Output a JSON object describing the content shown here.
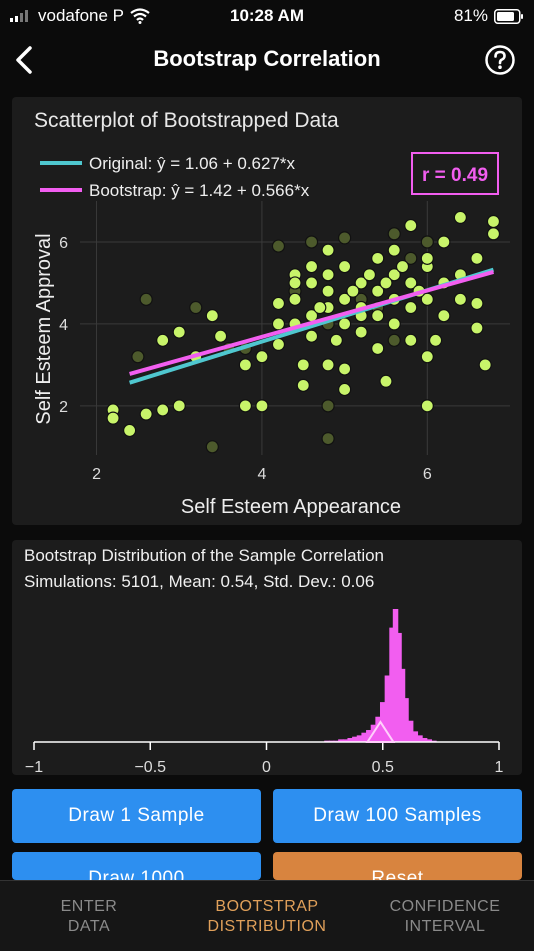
{
  "status_bar": {
    "carrier": "vodafone P",
    "time": "10:28 AM",
    "battery": "81%"
  },
  "navbar": {
    "title": "Bootstrap Correlation",
    "back_icon": "chevron-left-icon",
    "help_icon": "question-circle-icon"
  },
  "scatter_card": {
    "title": "Scatterplot of Bootstrapped Data",
    "legend": [
      {
        "label": "Original: ŷ = 1.06 + 0.627*x",
        "color": "#4fc7cf"
      },
      {
        "label": "Bootstrap: ŷ = 1.42 + 0.566*x",
        "color": "#f25ef0"
      }
    ],
    "r_badge": "r = 0.49"
  },
  "dist_card": {
    "title": "Bootstrap Distribution of the Sample Correlation",
    "subtitle": "Simulations: 5101, Mean: 0.54, Std. Dev.: 0.06"
  },
  "buttons": {
    "draw1": "Draw 1 Sample",
    "draw100": "Draw 100 Samples",
    "draw1000": "Draw 1000",
    "reset": "Reset"
  },
  "tabs": [
    {
      "line1": "ENTER",
      "line2": "DATA"
    },
    {
      "line1": "BOOTSTRAP",
      "line2": "DISTRIBUTION"
    },
    {
      "line1": "CONFIDENCE",
      "line2": "INTERVAL"
    }
  ],
  "chart_data": [
    {
      "type": "scatter",
      "xlabel": "Self Esteem Appearance",
      "ylabel": "Self Esteem Approval",
      "xlim": [
        1.8,
        7.0
      ],
      "ylim": [
        0.8,
        7.0
      ],
      "xticks": [
        2,
        4,
        6
      ],
      "yticks": [
        2,
        4,
        6
      ],
      "grid": true,
      "point_color": "#c8f46a",
      "faded_point_color": "#4d5a2c",
      "lines": [
        {
          "name": "Original",
          "intercept": 1.06,
          "slope": 0.627,
          "x_range": [
            2.4,
            6.8
          ],
          "color": "#4fc7cf"
        },
        {
          "name": "Bootstrap",
          "intercept": 1.42,
          "slope": 0.566,
          "x_range": [
            2.4,
            6.8
          ],
          "color": "#f25ef0"
        }
      ],
      "points": [
        [
          2.2,
          1.9
        ],
        [
          2.2,
          1.7
        ],
        [
          2.4,
          1.4
        ],
        [
          2.6,
          1.8
        ],
        [
          2.8,
          1.9
        ],
        [
          2.8,
          3.6
        ],
        [
          3.0,
          3.8
        ],
        [
          3.2,
          3.2
        ],
        [
          3.4,
          4.2
        ],
        [
          3.5,
          3.7
        ],
        [
          3.8,
          3.0
        ],
        [
          3.8,
          2.0
        ],
        [
          4.0,
          2.0
        ],
        [
          4.0,
          3.2
        ],
        [
          4.2,
          3.5
        ],
        [
          4.2,
          4.5
        ],
        [
          4.4,
          4.0
        ],
        [
          4.4,
          4.6
        ],
        [
          4.6,
          4.2
        ],
        [
          4.6,
          5.0
        ],
        [
          4.8,
          4.4
        ],
        [
          4.8,
          5.2
        ],
        [
          4.8,
          4.8
        ],
        [
          4.9,
          3.6
        ],
        [
          5.0,
          4.0
        ],
        [
          5.0,
          4.6
        ],
        [
          5.0,
          5.4
        ],
        [
          5.2,
          4.4
        ],
        [
          5.2,
          5.0
        ],
        [
          5.2,
          3.8
        ],
        [
          5.4,
          4.2
        ],
        [
          5.4,
          4.8
        ],
        [
          5.4,
          5.6
        ],
        [
          5.6,
          4.0
        ],
        [
          5.6,
          5.2
        ],
        [
          5.6,
          5.8
        ],
        [
          5.8,
          4.4
        ],
        [
          5.8,
          3.6
        ],
        [
          5.8,
          5.0
        ],
        [
          6.0,
          4.6
        ],
        [
          6.0,
          5.4
        ],
        [
          6.0,
          3.2
        ],
        [
          6.2,
          5.0
        ],
        [
          6.2,
          4.2
        ],
        [
          6.2,
          6.0
        ],
        [
          6.4,
          5.2
        ],
        [
          6.4,
          4.6
        ],
        [
          6.6,
          3.9
        ],
        [
          6.6,
          4.5
        ],
        [
          6.6,
          5.6
        ],
        [
          6.8,
          6.2
        ],
        [
          6.8,
          6.5
        ],
        [
          6.0,
          2.0
        ],
        [
          5.5,
          2.6
        ],
        [
          5.0,
          2.4
        ],
        [
          4.5,
          3.0
        ],
        [
          4.5,
          2.5
        ],
        [
          4.8,
          3.0
        ],
        [
          5.0,
          2.9
        ],
        [
          3.0,
          2.0
        ],
        [
          4.4,
          5.2
        ],
        [
          4.6,
          5.4
        ],
        [
          4.8,
          5.8
        ],
        [
          5.2,
          4.2
        ],
        [
          5.4,
          3.4
        ],
        [
          5.6,
          4.6
        ],
        [
          5.8,
          6.4
        ],
        [
          6.4,
          6.6
        ],
        [
          6.7,
          3.0
        ],
        [
          6.0,
          5.6
        ],
        [
          4.2,
          4.0
        ],
        [
          4.4,
          5.0
        ],
        [
          4.6,
          3.7
        ],
        [
          4.7,
          4.4
        ],
        [
          5.1,
          4.8
        ],
        [
          5.3,
          5.2
        ],
        [
          5.5,
          5.0
        ],
        [
          5.7,
          5.4
        ],
        [
          5.9,
          4.8
        ],
        [
          6.1,
          3.6
        ]
      ],
      "faded_points": [
        [
          2.5,
          3.2
        ],
        [
          2.6,
          4.6
        ],
        [
          3.2,
          4.4
        ],
        [
          3.4,
          1.0
        ],
        [
          3.6,
          3.4
        ],
        [
          4.2,
          5.9
        ],
        [
          4.6,
          6.0
        ],
        [
          4.8,
          5.2
        ],
        [
          4.8,
          4.0
        ],
        [
          4.8,
          2.0
        ],
        [
          4.8,
          1.2
        ],
        [
          5.0,
          6.1
        ],
        [
          5.2,
          4.6
        ],
        [
          5.4,
          4.4
        ],
        [
          5.6,
          3.6
        ],
        [
          5.6,
          6.2
        ],
        [
          5.8,
          5.6
        ],
        [
          6.0,
          6.0
        ],
        [
          3.8,
          3.4
        ],
        [
          4.4,
          4.8
        ]
      ]
    },
    {
      "type": "histogram",
      "xlim": [
        -1,
        1
      ],
      "xticks": [
        -1,
        -0.5,
        0,
        0.5,
        1
      ],
      "xtick_labels": [
        "−1",
        "−0.5",
        "0",
        "0.5",
        "1"
      ],
      "bar_color": "#f25ef0",
      "marker_value": 0.49,
      "bins": [
        [
          0.26,
          1
        ],
        [
          0.28,
          1
        ],
        [
          0.3,
          1
        ],
        [
          0.32,
          2
        ],
        [
          0.34,
          2
        ],
        [
          0.36,
          3
        ],
        [
          0.38,
          4
        ],
        [
          0.4,
          5
        ],
        [
          0.42,
          7
        ],
        [
          0.44,
          9
        ],
        [
          0.46,
          13
        ],
        [
          0.48,
          19
        ],
        [
          0.5,
          30
        ],
        [
          0.52,
          50
        ],
        [
          0.54,
          86
        ],
        [
          0.555,
          100
        ],
        [
          0.57,
          82
        ],
        [
          0.585,
          55
        ],
        [
          0.6,
          33
        ],
        [
          0.62,
          16
        ],
        [
          0.64,
          8
        ],
        [
          0.66,
          5
        ],
        [
          0.68,
          3
        ],
        [
          0.7,
          2
        ],
        [
          0.72,
          1
        ]
      ]
    }
  ]
}
